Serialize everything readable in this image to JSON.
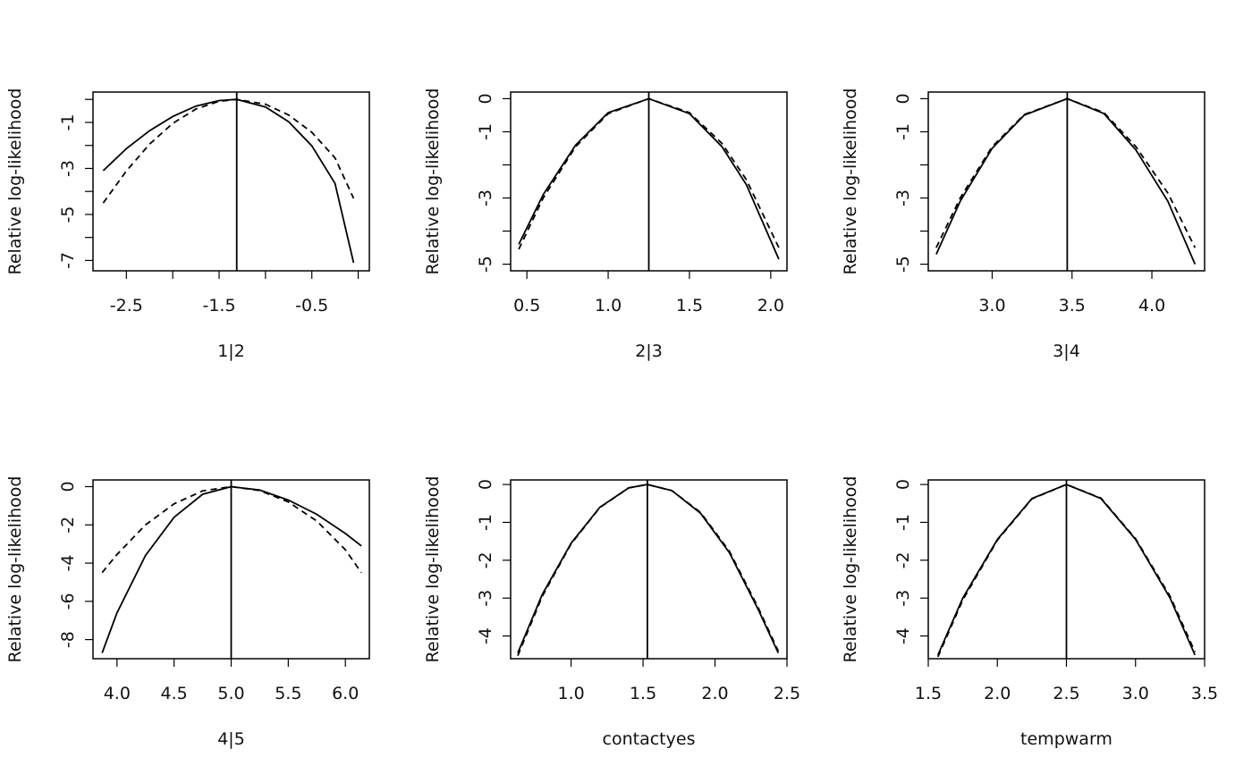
{
  "chart_data": [
    {
      "type": "line",
      "xlabel": "1|2",
      "ylabel": "Relative log-likelihood",
      "xlim": [
        -2.86,
        0.12
      ],
      "ylim": [
        -7.45,
        0.32
      ],
      "xticks": [
        -2.5,
        -2.0,
        -1.5,
        -1.0,
        -0.5,
        0.0
      ],
      "xtick_labels": [
        "-2.5",
        "",
        "-1.5",
        "",
        "-0.5",
        ""
      ],
      "yticks": [
        -7,
        -6,
        -5,
        -4,
        -3,
        -2,
        -1,
        0
      ],
      "ytick_labels": [
        "-7",
        "",
        "-5",
        "",
        "-3",
        "",
        "-1",
        ""
      ],
      "mle": -1.31,
      "series": [
        {
          "style": "solid",
          "x": [
            -2.75,
            -2.5,
            -2.25,
            -2.0,
            -1.75,
            -1.5,
            -1.31,
            -1.0,
            -0.75,
            -0.5,
            -0.25,
            -0.05
          ],
          "y": [
            -3.1,
            -2.14,
            -1.36,
            -0.74,
            -0.29,
            -0.05,
            0.0,
            -0.33,
            -0.97,
            -2.02,
            -3.65,
            -7.1
          ]
        },
        {
          "style": "dashed",
          "x": [
            -2.75,
            -2.5,
            -2.25,
            -2.0,
            -1.75,
            -1.5,
            -1.31,
            -1.0,
            -0.75,
            -0.5,
            -0.25,
            -0.05
          ],
          "y": [
            -4.5,
            -3.11,
            -1.94,
            -1.04,
            -0.42,
            -0.08,
            0.0,
            -0.21,
            -0.68,
            -1.43,
            -2.54,
            -4.3
          ]
        }
      ]
    },
    {
      "type": "line",
      "xlabel": "2|3",
      "ylabel": "Relative log-likelihood",
      "xlim": [
        0.4,
        2.1
      ],
      "ylim": [
        -5.2,
        0.2
      ],
      "xticks": [
        0.5,
        1.0,
        1.5,
        2.0
      ],
      "xtick_labels": [
        "0.5",
        "1.0",
        "1.5",
        "2.0"
      ],
      "yticks": [
        -5,
        -4,
        -3,
        -2,
        -1,
        0
      ],
      "ytick_labels": [
        "-5",
        "",
        "-3",
        "",
        "-1",
        "0"
      ],
      "mle": 1.25,
      "series": [
        {
          "style": "solid",
          "x": [
            0.45,
            0.6,
            0.8,
            1.0,
            1.25,
            1.5,
            1.7,
            1.85,
            2.05
          ],
          "y": [
            -4.4,
            -2.9,
            -1.4,
            -0.42,
            0.0,
            -0.45,
            -1.45,
            -2.6,
            -4.85
          ]
        },
        {
          "style": "dashed",
          "x": [
            0.45,
            0.6,
            0.8,
            1.0,
            1.25,
            1.5,
            1.7,
            1.85,
            2.05
          ],
          "y": [
            -4.55,
            -3.0,
            -1.45,
            -0.45,
            0.0,
            -0.42,
            -1.35,
            -2.45,
            -4.5
          ]
        }
      ]
    },
    {
      "type": "line",
      "xlabel": "3|4",
      "ylabel": "Relative log-likelihood",
      "xlim": [
        2.6,
        4.33
      ],
      "ylim": [
        -5.2,
        0.2
      ],
      "xticks": [
        3.0,
        3.5,
        4.0
      ],
      "xtick_labels": [
        "3.0",
        "3.5",
        "4.0"
      ],
      "yticks": [
        -5,
        -4,
        -3,
        -2,
        -1,
        0
      ],
      "ytick_labels": [
        "-5",
        "",
        "-3",
        "",
        "-1",
        "0"
      ],
      "mle": 3.47,
      "series": [
        {
          "style": "solid",
          "x": [
            2.65,
            2.8,
            3.0,
            3.2,
            3.47,
            3.7,
            3.9,
            4.1,
            4.27
          ],
          "y": [
            -4.7,
            -3.1,
            -1.5,
            -0.5,
            0.0,
            -0.45,
            -1.55,
            -3.1,
            -5.0
          ]
        },
        {
          "style": "dashed",
          "x": [
            2.65,
            2.8,
            3.0,
            3.2,
            3.47,
            3.7,
            3.9,
            4.1,
            4.27
          ],
          "y": [
            -4.5,
            -3.0,
            -1.45,
            -0.48,
            0.0,
            -0.42,
            -1.45,
            -2.85,
            -4.5
          ]
        }
      ]
    },
    {
      "type": "line",
      "xlabel": "4|5",
      "ylabel": "Relative log-likelihood",
      "xlim": [
        3.79,
        6.21
      ],
      "ylim": [
        -9.0,
        0.35
      ],
      "xticks": [
        4.0,
        4.5,
        5.0,
        5.5,
        6.0
      ],
      "xtick_labels": [
        "4.0",
        "4.5",
        "5.0",
        "5.5",
        "6.0"
      ],
      "yticks": [
        -8,
        -6,
        -4,
        -2,
        0
      ],
      "ytick_labels": [
        "-8",
        "-6",
        "-4",
        "-2",
        "0"
      ],
      "mle": 5.0,
      "series": [
        {
          "style": "solid",
          "x": [
            3.87,
            4.0,
            4.25,
            4.5,
            4.75,
            5.0,
            5.25,
            5.5,
            5.75,
            6.0,
            6.14
          ],
          "y": [
            -8.7,
            -6.6,
            -3.6,
            -1.6,
            -0.4,
            0.0,
            -0.18,
            -0.7,
            -1.45,
            -2.45,
            -3.1
          ]
        },
        {
          "style": "dashed",
          "x": [
            3.87,
            4.0,
            4.25,
            4.5,
            4.75,
            5.0,
            5.25,
            5.5,
            5.75,
            6.0,
            6.14
          ],
          "y": [
            -4.5,
            -3.55,
            -2.0,
            -0.9,
            -0.22,
            0.0,
            -0.2,
            -0.8,
            -1.8,
            -3.3,
            -4.5
          ]
        }
      ]
    },
    {
      "type": "line",
      "xlabel": "contactyes",
      "ylabel": "Relative log-likelihood",
      "xlim": [
        0.58,
        2.5
      ],
      "ylim": [
        -4.6,
        0.12
      ],
      "xticks": [
        1.0,
        1.5,
        2.0,
        2.5
      ],
      "xtick_labels": [
        "1.0",
        "1.5",
        "2.0",
        "2.5"
      ],
      "yticks": [
        -4,
        -3,
        -2,
        -1,
        0
      ],
      "ytick_labels": [
        "-4",
        "-3",
        "-2",
        "-1",
        "0"
      ],
      "mle": 1.53,
      "series": [
        {
          "style": "solid",
          "x": [
            0.63,
            0.8,
            1.0,
            1.2,
            1.4,
            1.53,
            1.7,
            1.9,
            2.1,
            2.3,
            2.44
          ],
          "y": [
            -4.45,
            -2.9,
            -1.55,
            -0.6,
            -0.09,
            0.0,
            -0.16,
            -0.76,
            -1.8,
            -3.3,
            -4.45
          ]
        },
        {
          "style": "dashed",
          "x": [
            0.63,
            0.8,
            1.0,
            1.2,
            1.4,
            1.53,
            1.7,
            1.9,
            2.1,
            2.3,
            2.44
          ],
          "y": [
            -4.52,
            -2.95,
            -1.57,
            -0.61,
            -0.09,
            0.0,
            -0.16,
            -0.74,
            -1.76,
            -3.25,
            -4.4
          ]
        }
      ]
    },
    {
      "type": "line",
      "xlabel": "tempwarm",
      "ylabel": "Relative log-likelihood",
      "xlim": [
        1.5,
        3.5
      ],
      "ylim": [
        -4.6,
        0.12
      ],
      "xticks": [
        1.5,
        2.0,
        2.5,
        3.0,
        3.5
      ],
      "xtick_labels": [
        "1.5",
        "2.0",
        "2.5",
        "3.0",
        "3.5"
      ],
      "yticks": [
        -4,
        -3,
        -2,
        -1,
        0
      ],
      "ytick_labels": [
        "-4",
        "-3",
        "-2",
        "-1",
        "0"
      ],
      "mle": 2.5,
      "series": [
        {
          "style": "solid",
          "x": [
            1.57,
            1.75,
            2.0,
            2.25,
            2.5,
            2.75,
            3.0,
            3.25,
            3.43
          ],
          "y": [
            -4.5,
            -3.0,
            -1.45,
            -0.37,
            0.0,
            -0.37,
            -1.45,
            -3.0,
            -4.5
          ]
        },
        {
          "style": "dashed",
          "x": [
            1.57,
            1.75,
            2.0,
            2.25,
            2.5,
            2.75,
            3.0,
            3.25,
            3.43
          ],
          "y": [
            -4.55,
            -3.05,
            -1.47,
            -0.38,
            0.0,
            -0.36,
            -1.43,
            -2.95,
            -4.42
          ]
        }
      ]
    }
  ]
}
